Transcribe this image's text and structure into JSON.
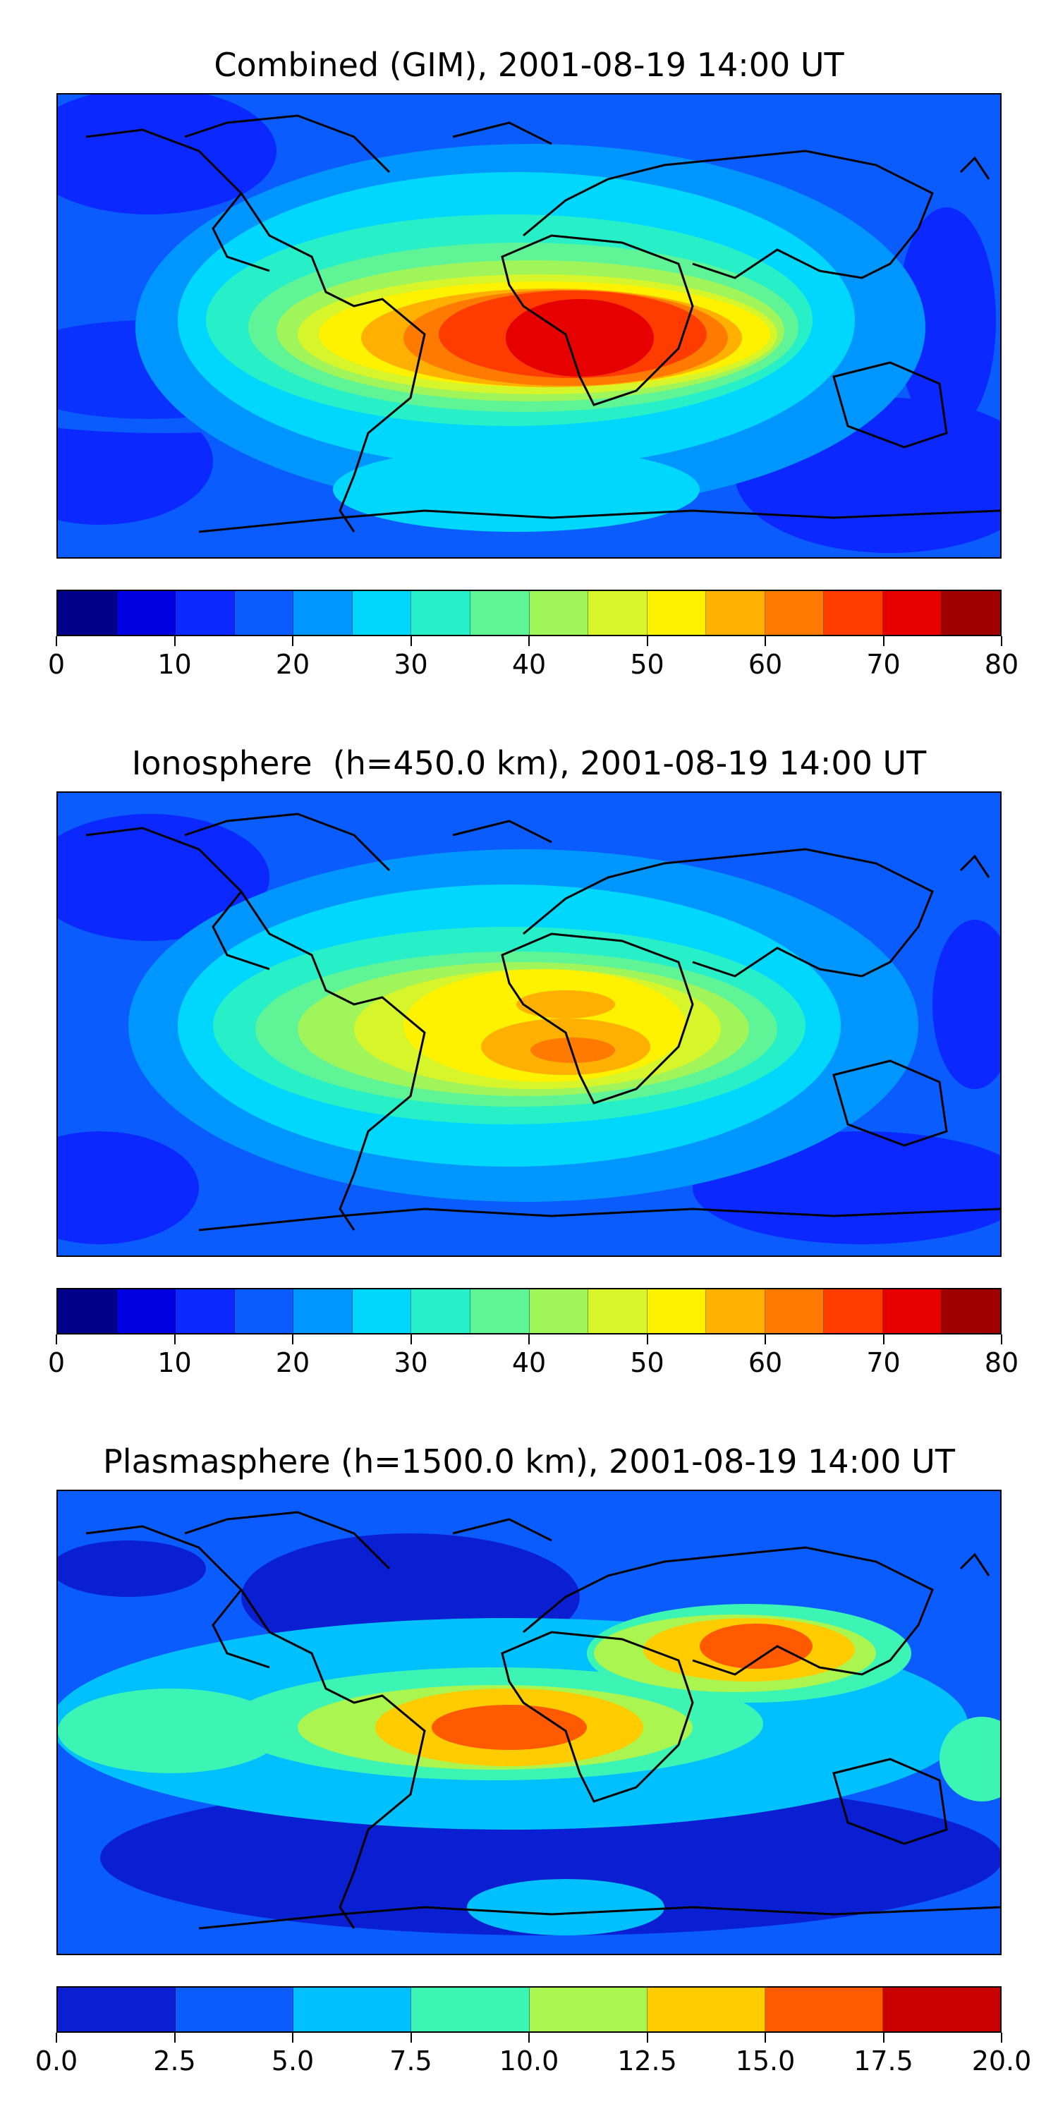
{
  "panels": [
    {
      "title": "Combined (GIM), 2001-08-19 14:00 UT",
      "colorbar": {
        "colors": [
          "#00008b",
          "#0000e0",
          "#0a28ff",
          "#0a5cff",
          "#0096ff",
          "#00d7ff",
          "#27f0c8",
          "#5ff596",
          "#a0f55a",
          "#d6f52a",
          "#fff200",
          "#ffb000",
          "#ff7a00",
          "#ff3c00",
          "#e60000",
          "#9e0000"
        ],
        "ticks": [
          "0",
          "10",
          "20",
          "30",
          "40",
          "50",
          "60",
          "70",
          "80"
        ]
      }
    },
    {
      "title": "Ionosphere  (h=450.0 km), 2001-08-19 14:00 UT",
      "colorbar": {
        "colors": [
          "#00008b",
          "#0000e0",
          "#0a28ff",
          "#0a5cff",
          "#0096ff",
          "#00d7ff",
          "#27f0c8",
          "#5ff596",
          "#a0f55a",
          "#d6f52a",
          "#fff200",
          "#ffb000",
          "#ff7a00",
          "#ff3c00",
          "#e60000",
          "#9e0000"
        ],
        "ticks": [
          "0",
          "10",
          "20",
          "30",
          "40",
          "50",
          "60",
          "70",
          "80"
        ]
      }
    },
    {
      "title": "Plasmasphere (h=1500.0 km), 2001-08-19 14:00 UT",
      "colorbar": {
        "colors": [
          "#0a1ed2",
          "#0a5cff",
          "#00c0ff",
          "#3cf5b4",
          "#aaf550",
          "#ffcc00",
          "#ff5a00",
          "#c80000"
        ],
        "ticks": [
          "0.0",
          "2.5",
          "5.0",
          "7.5",
          "10.0",
          "12.5",
          "15.0",
          "17.5",
          "20.0"
        ]
      }
    }
  ]
}
